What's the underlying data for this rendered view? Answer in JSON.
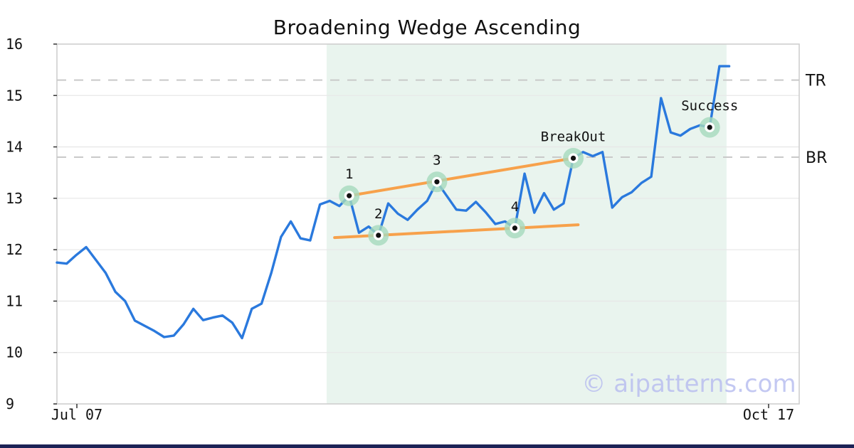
{
  "title": "Broadening Wedge Ascending",
  "watermark": "© aipatterns.com",
  "chart_data": {
    "type": "line",
    "title": "Broadening Wedge Ascending",
    "grid": "horizontal",
    "legend": "none",
    "y_axis": {
      "min": 9,
      "max": 16,
      "tick_labels": [
        "9",
        "10",
        "11",
        "12",
        "13",
        "14",
        "15",
        "16"
      ]
    },
    "x_axis": {
      "ticks": [
        {
          "label": "Jul 07",
          "x": 108
        },
        {
          "label": "Oct 17",
          "x": 1080
        }
      ]
    },
    "series": [
      {
        "name": "price",
        "values": [
          11.75,
          11.73,
          11.9,
          12.05,
          11.8,
          11.55,
          11.18,
          11.0,
          10.62,
          10.52,
          10.42,
          10.3,
          10.33,
          10.55,
          10.85,
          10.63,
          10.68,
          10.72,
          10.58,
          10.28,
          10.85,
          10.95,
          11.55,
          12.25,
          12.55,
          12.22,
          12.18,
          12.88,
          12.95,
          12.85,
          13.05,
          12.33,
          12.45,
          12.28,
          12.9,
          12.7,
          12.58,
          12.78,
          12.95,
          13.32,
          13.05,
          12.78,
          12.76,
          12.93,
          12.73,
          12.5,
          12.55,
          12.42,
          13.48,
          12.72,
          13.1,
          12.78,
          12.9,
          13.78,
          13.9,
          13.82,
          13.9,
          12.82,
          13.02,
          13.12,
          13.3,
          13.42,
          14.95,
          14.28,
          14.22,
          14.35,
          14.42,
          14.38,
          15.57,
          15.57
        ]
      }
    ],
    "levels": [
      {
        "label": "TR",
        "value": 15.3
      },
      {
        "label": "BR",
        "value": 13.8
      }
    ],
    "pattern_zone": {
      "xi_start": 27.68,
      "xi_end": 68.73
    },
    "trendlines": [
      {
        "name": "upper",
        "x1i": 30.0,
        "v1": 13.05,
        "x2i": 53.0,
        "v2": 13.78
      },
      {
        "name": "lower",
        "x1i": 28.5,
        "v1": 12.235,
        "x2i": 53.5,
        "v2": 12.485
      }
    ],
    "annotations": [
      {
        "label": "1",
        "index": 30
      },
      {
        "label": "2",
        "index": 33
      },
      {
        "label": "3",
        "index": 39
      },
      {
        "label": "4",
        "index": 47
      },
      {
        "label": "BreakOut",
        "index": 53
      },
      {
        "label": "Success",
        "index": 67
      }
    ],
    "colors": {
      "line": "#2a79dd",
      "trendline": "#f7a14b",
      "marker_halo": "#a5dabd",
      "marker_dot": "#111111",
      "pattern_zone": "#e9f4ee",
      "level_dash": "#c9c9c9",
      "grid": "#e8e8e8",
      "plot_border": "#cfcfcf",
      "tick": "#333333",
      "text": "#111111",
      "watermark": "#b9bff0",
      "bottom_bar": "#1c2256"
    }
  }
}
